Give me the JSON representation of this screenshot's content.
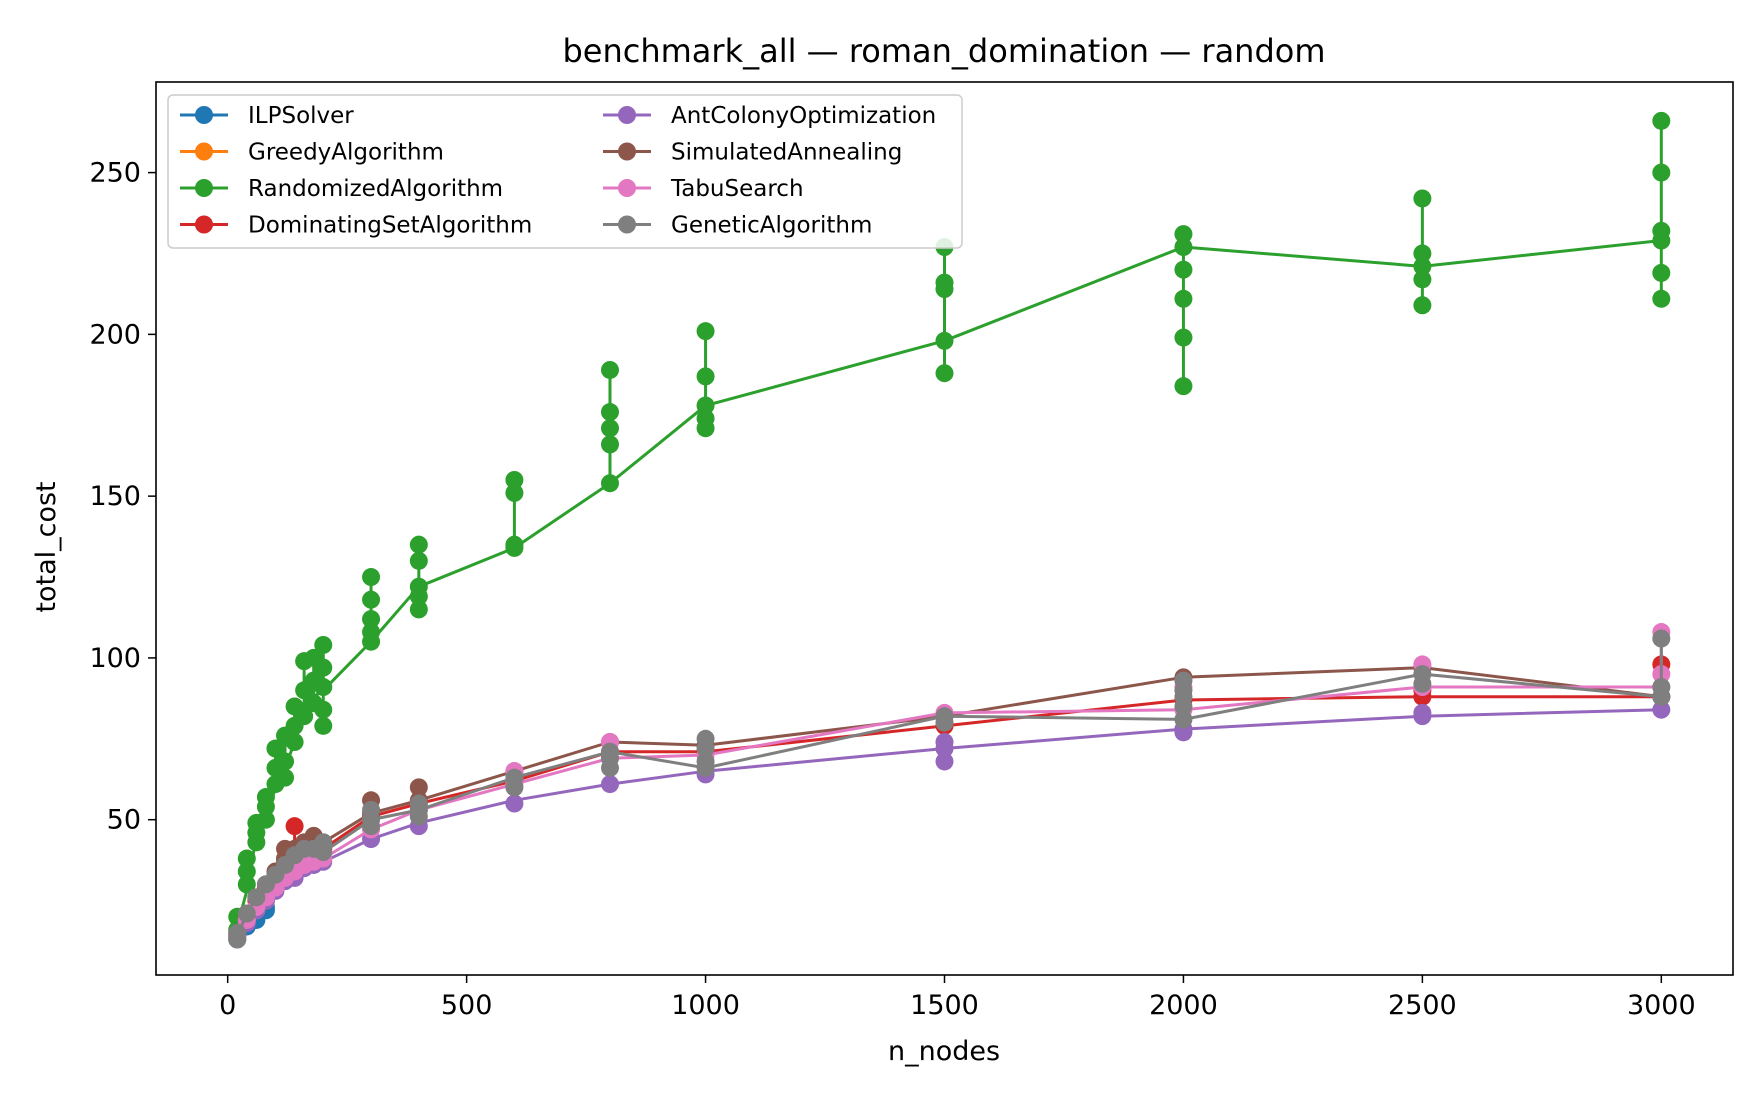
{
  "chart_data": {
    "type": "line",
    "title": "benchmark_all — roman_domination — random",
    "xlabel": "n_nodes",
    "ylabel": "total_cost",
    "xlim": [
      -150,
      3150
    ],
    "ylim": [
      2,
      278
    ],
    "xticks": [
      0,
      500,
      1000,
      1500,
      2000,
      2500,
      3000
    ],
    "yticks": [
      50,
      100,
      150,
      200,
      250
    ],
    "grid": false,
    "legend_position": "upper-left",
    "series": [
      {
        "name": "ILPSolver",
        "color": "#1f77b4",
        "x": [
          20,
          40,
          60,
          80
        ],
        "y": [
          14,
          18,
          20,
          22
        ],
        "points": [
          [
            20,
            13
          ],
          [
            20,
            15
          ],
          [
            40,
            17
          ],
          [
            40,
            19
          ],
          [
            60,
            19
          ],
          [
            60,
            21
          ],
          [
            80,
            22
          ],
          [
            80,
            23
          ]
        ]
      },
      {
        "name": "GreedyAlgorithm",
        "color": "#ff7f0e",
        "x": [
          20,
          40,
          60,
          80
        ],
        "y": [
          15,
          19,
          22,
          25
        ],
        "points": [
          [
            20,
            15
          ],
          [
            40,
            19
          ],
          [
            60,
            22
          ],
          [
            80,
            25
          ]
        ]
      },
      {
        "name": "RandomizedAlgorithm",
        "color": "#2ca02c",
        "x": [
          20,
          40,
          60,
          80,
          100,
          120,
          140,
          160,
          180,
          200,
          300,
          400,
          600,
          800,
          1000,
          1500,
          2000,
          2500,
          3000
        ],
        "y": [
          17,
          28,
          45,
          50,
          60,
          66,
          74,
          82,
          88,
          90,
          105,
          122,
          134,
          154,
          178,
          198,
          227,
          221,
          229
        ],
        "points": [
          [
            20,
            16
          ],
          [
            20,
            20
          ],
          [
            40,
            30
          ],
          [
            40,
            34
          ],
          [
            40,
            38
          ],
          [
            60,
            43
          ],
          [
            60,
            46
          ],
          [
            60,
            49
          ],
          [
            80,
            50
          ],
          [
            80,
            54
          ],
          [
            80,
            57
          ],
          [
            100,
            61
          ],
          [
            100,
            66
          ],
          [
            100,
            72
          ],
          [
            120,
            63
          ],
          [
            120,
            68
          ],
          [
            120,
            76
          ],
          [
            140,
            74
          ],
          [
            140,
            79
          ],
          [
            140,
            85
          ],
          [
            160,
            82
          ],
          [
            160,
            90
          ],
          [
            160,
            99
          ],
          [
            180,
            86
          ],
          [
            180,
            93
          ],
          [
            180,
            100
          ],
          [
            200,
            79
          ],
          [
            200,
            84
          ],
          [
            200,
            91
          ],
          [
            200,
            97
          ],
          [
            200,
            104
          ],
          [
            300,
            105
          ],
          [
            300,
            108
          ],
          [
            300,
            112
          ],
          [
            300,
            118
          ],
          [
            300,
            125
          ],
          [
            400,
            115
          ],
          [
            400,
            119
          ],
          [
            400,
            122
          ],
          [
            400,
            130
          ],
          [
            400,
            135
          ],
          [
            600,
            134
          ],
          [
            600,
            135
          ],
          [
            600,
            151
          ],
          [
            600,
            155
          ],
          [
            800,
            154
          ],
          [
            800,
            166
          ],
          [
            800,
            171
          ],
          [
            800,
            176
          ],
          [
            800,
            189
          ],
          [
            1000,
            171
          ],
          [
            1000,
            174
          ],
          [
            1000,
            178
          ],
          [
            1000,
            187
          ],
          [
            1000,
            201
          ],
          [
            1500,
            188
          ],
          [
            1500,
            198
          ],
          [
            1500,
            214
          ],
          [
            1500,
            216
          ],
          [
            1500,
            227
          ],
          [
            2000,
            184
          ],
          [
            2000,
            199
          ],
          [
            2000,
            211
          ],
          [
            2000,
            220
          ],
          [
            2000,
            227
          ],
          [
            2000,
            231
          ],
          [
            2500,
            209
          ],
          [
            2500,
            217
          ],
          [
            2500,
            221
          ],
          [
            2500,
            225
          ],
          [
            2500,
            242
          ],
          [
            3000,
            211
          ],
          [
            3000,
            219
          ],
          [
            3000,
            229
          ],
          [
            3000,
            232
          ],
          [
            3000,
            250
          ],
          [
            3000,
            266
          ]
        ]
      },
      {
        "name": "DominatingSetAlgorithm",
        "color": "#d62728",
        "x": [
          20,
          40,
          60,
          80,
          100,
          120,
          140,
          160,
          180,
          200,
          300,
          400,
          600,
          800,
          1000,
          1500,
          2000,
          2500,
          3000
        ],
        "y": [
          14,
          20,
          25,
          29,
          33,
          37,
          40,
          41,
          42,
          41,
          51,
          55,
          62,
          71,
          71,
          79,
          87,
          88,
          88
        ],
        "points": [
          [
            20,
            14
          ],
          [
            40,
            20
          ],
          [
            60,
            25
          ],
          [
            80,
            29
          ],
          [
            100,
            33
          ],
          [
            120,
            37
          ],
          [
            140,
            40
          ],
          [
            140,
            48
          ],
          [
            160,
            41
          ],
          [
            180,
            42
          ],
          [
            200,
            41
          ],
          [
            300,
            51
          ],
          [
            400,
            55
          ],
          [
            600,
            62
          ],
          [
            800,
            71
          ],
          [
            1000,
            71
          ],
          [
            1500,
            79
          ],
          [
            2000,
            87
          ],
          [
            2500,
            88
          ],
          [
            2500,
            90
          ],
          [
            3000,
            88
          ],
          [
            3000,
            98
          ]
        ]
      },
      {
        "name": "AntColonyOptimization",
        "color": "#9467bd",
        "x": [
          20,
          40,
          60,
          80,
          100,
          120,
          140,
          160,
          180,
          200,
          300,
          400,
          600,
          800,
          1000,
          1500,
          2000,
          2500,
          3000
        ],
        "y": [
          13,
          18,
          22,
          25,
          28,
          31,
          33,
          35,
          36,
          37,
          44,
          49,
          56,
          61,
          65,
          72,
          78,
          82,
          84
        ],
        "points": [
          [
            20,
            13
          ],
          [
            40,
            18
          ],
          [
            60,
            22
          ],
          [
            80,
            25
          ],
          [
            100,
            28
          ],
          [
            120,
            31
          ],
          [
            140,
            32
          ],
          [
            160,
            35
          ],
          [
            180,
            36
          ],
          [
            200,
            37
          ],
          [
            300,
            44
          ],
          [
            400,
            48
          ],
          [
            600,
            55
          ],
          [
            800,
            61
          ],
          [
            1000,
            64
          ],
          [
            1500,
            68
          ],
          [
            1500,
            72
          ],
          [
            1500,
            74
          ],
          [
            2000,
            77
          ],
          [
            2000,
            78
          ],
          [
            2500,
            82
          ],
          [
            2500,
            83
          ],
          [
            3000,
            84
          ]
        ]
      },
      {
        "name": "SimulatedAnnealing",
        "color": "#8c564b",
        "x": [
          20,
          40,
          60,
          80,
          100,
          120,
          140,
          160,
          180,
          200,
          300,
          400,
          600,
          800,
          1000,
          1500,
          2000,
          2500,
          3000
        ],
        "y": [
          14,
          20,
          26,
          30,
          34,
          38,
          41,
          43,
          44,
          43,
          52,
          56,
          65,
          74,
          73,
          82,
          94,
          97,
          88
        ],
        "points": [
          [
            20,
            14
          ],
          [
            40,
            20
          ],
          [
            60,
            26
          ],
          [
            80,
            30
          ],
          [
            100,
            34
          ],
          [
            120,
            38
          ],
          [
            120,
            41
          ],
          [
            140,
            41
          ],
          [
            160,
            43
          ],
          [
            180,
            44
          ],
          [
            180,
            45
          ],
          [
            200,
            43
          ],
          [
            300,
            52
          ],
          [
            300,
            56
          ],
          [
            400,
            56
          ],
          [
            400,
            60
          ],
          [
            600,
            65
          ],
          [
            800,
            74
          ],
          [
            1000,
            73
          ],
          [
            1500,
            82
          ],
          [
            2000,
            94
          ],
          [
            2500,
            97
          ],
          [
            3000,
            88
          ]
        ]
      },
      {
        "name": "TabuSearch",
        "color": "#e377c2",
        "x": [
          20,
          40,
          60,
          80,
          100,
          120,
          140,
          160,
          180,
          200,
          300,
          400,
          600,
          800,
          1000,
          1500,
          2000,
          2500,
          3000
        ],
        "y": [
          14,
          19,
          23,
          26,
          29,
          32,
          34,
          36,
          37,
          38,
          47,
          53,
          61,
          69,
          70,
          83,
          84,
          91,
          91
        ],
        "points": [
          [
            20,
            14
          ],
          [
            40,
            19
          ],
          [
            60,
            23
          ],
          [
            80,
            26
          ],
          [
            100,
            29
          ],
          [
            120,
            32
          ],
          [
            140,
            34
          ],
          [
            160,
            36
          ],
          [
            180,
            37
          ],
          [
            200,
            38
          ],
          [
            300,
            47
          ],
          [
            400,
            53
          ],
          [
            600,
            61
          ],
          [
            600,
            65
          ],
          [
            800,
            69
          ],
          [
            800,
            74
          ],
          [
            1000,
            70
          ],
          [
            1500,
            83
          ],
          [
            2000,
            84
          ],
          [
            2000,
            91
          ],
          [
            2500,
            91
          ],
          [
            2500,
            98
          ],
          [
            3000,
            91
          ],
          [
            3000,
            95
          ],
          [
            3000,
            108
          ]
        ]
      },
      {
        "name": "GeneticAlgorithm",
        "color": "#7f7f7f",
        "x": [
          20,
          40,
          60,
          80,
          100,
          120,
          140,
          160,
          180,
          200,
          300,
          400,
          600,
          800,
          1000,
          1500,
          2000,
          2500,
          3000
        ],
        "y": [
          14,
          21,
          26,
          30,
          33,
          36,
          39,
          41,
          41,
          40,
          50,
          53,
          63,
          71,
          66,
          82,
          81,
          95,
          88
        ],
        "points": [
          [
            20,
            13
          ],
          [
            20,
            15
          ],
          [
            40,
            21
          ],
          [
            60,
            26
          ],
          [
            80,
            30
          ],
          [
            100,
            33
          ],
          [
            120,
            36
          ],
          [
            140,
            39
          ],
          [
            160,
            41
          ],
          [
            180,
            41
          ],
          [
            200,
            40
          ],
          [
            200,
            43
          ],
          [
            300,
            48
          ],
          [
            300,
            50
          ],
          [
            300,
            53
          ],
          [
            400,
            51
          ],
          [
            400,
            53
          ],
          [
            400,
            55
          ],
          [
            600,
            60
          ],
          [
            600,
            63
          ],
          [
            800,
            66
          ],
          [
            800,
            69
          ],
          [
            800,
            71
          ],
          [
            1000,
            66
          ],
          [
            1000,
            68
          ],
          [
            1000,
            72
          ],
          [
            1000,
            75
          ],
          [
            1500,
            80
          ],
          [
            1500,
            82
          ],
          [
            2000,
            81
          ],
          [
            2000,
            85
          ],
          [
            2000,
            88
          ],
          [
            2000,
            90
          ],
          [
            2000,
            93
          ],
          [
            2500,
            92
          ],
          [
            2500,
            95
          ],
          [
            3000,
            88
          ],
          [
            3000,
            91
          ],
          [
            3000,
            106
          ]
        ]
      }
    ]
  }
}
